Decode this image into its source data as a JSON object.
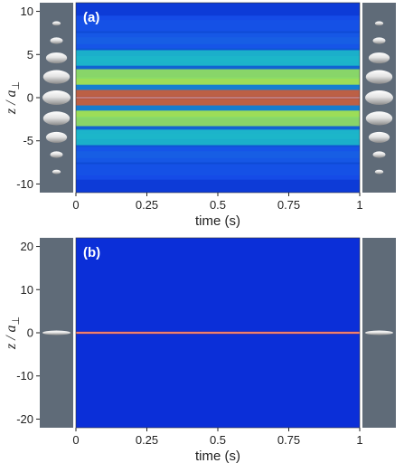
{
  "chart_data": [
    {
      "type": "heatmap",
      "panel_label": "(a)",
      "xlabel": "time (s)",
      "ylabel": "z / a⊥",
      "ylabel_main": "z / a",
      "ylabel_sub": "⊥",
      "xlim": [
        0,
        1
      ],
      "ylim": [
        -11,
        11
      ],
      "xticks": [
        0,
        0.25,
        0.5,
        0.75,
        1
      ],
      "xtick_labels": [
        "0",
        "0.25",
        "0.5",
        "0.75",
        "1"
      ],
      "yticks": [
        -10,
        -5,
        0,
        5,
        10
      ],
      "ytick_labels": [
        "-10",
        "-5",
        "0",
        "5",
        "10"
      ],
      "density_bands": [
        {
          "z": 0,
          "intensity": 1.0
        },
        {
          "z": 2.4,
          "intensity": 0.62
        },
        {
          "z": -2.4,
          "intensity": 0.62
        },
        {
          "z": 4.6,
          "intensity": 0.42
        },
        {
          "z": -4.6,
          "intensity": 0.42
        },
        {
          "z": 6.6,
          "intensity": 0.3
        },
        {
          "z": -6.6,
          "intensity": 0.3
        },
        {
          "z": 8.6,
          "intensity": 0.22
        },
        {
          "z": -8.6,
          "intensity": 0.22
        }
      ],
      "side_ellipsoids": [
        {
          "z": 0,
          "relative_width": 1.0
        },
        {
          "z": 2.4,
          "relative_width": 0.95
        },
        {
          "z": -2.4,
          "relative_width": 0.95
        },
        {
          "z": 4.6,
          "relative_width": 0.75
        },
        {
          "z": -4.6,
          "relative_width": 0.75
        },
        {
          "z": 6.6,
          "relative_width": 0.45
        },
        {
          "z": -6.6,
          "relative_width": 0.45
        },
        {
          "z": 8.6,
          "relative_width": 0.3
        },
        {
          "z": -8.6,
          "relative_width": 0.3
        }
      ]
    },
    {
      "type": "heatmap",
      "panel_label": "(b)",
      "xlabel": "time (s)",
      "ylabel": "z / a⊥",
      "ylabel_main": "z / a",
      "ylabel_sub": "⊥",
      "xlim": [
        0,
        1
      ],
      "ylim": [
        -22,
        22
      ],
      "xticks": [
        0,
        0.25,
        0.5,
        0.75,
        1
      ],
      "xtick_labels": [
        "0",
        "0.25",
        "0.5",
        "0.75",
        "1"
      ],
      "yticks": [
        -20,
        -10,
        0,
        10,
        20
      ],
      "ytick_labels": [
        "-20",
        "-10",
        "0",
        "10",
        "20"
      ],
      "density_bands": [
        {
          "z": 0,
          "intensity": 1.0
        }
      ],
      "side_ellipsoids": [
        {
          "z": 0,
          "relative_width": 1.0
        }
      ]
    }
  ],
  "colors": {
    "background": "#0b2fd8",
    "low": "#1a55f0",
    "mid": "#20d0c8",
    "high_mid": "#b8f040",
    "high": "#e84020",
    "side_panel": "#5f6b78",
    "ellipsoid": "#dcdcdc"
  }
}
